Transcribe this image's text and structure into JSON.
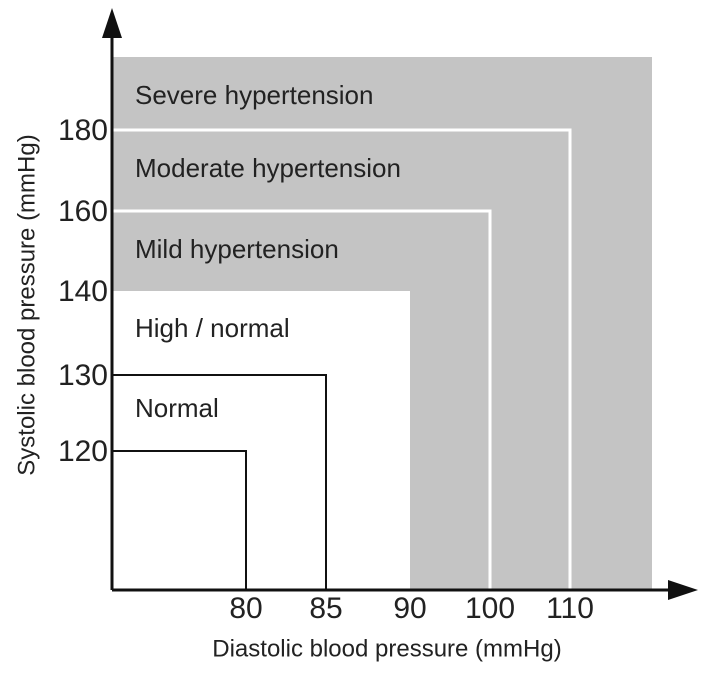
{
  "zones": [
    {
      "label": "Severe hypertension"
    },
    {
      "label": "Moderate hypertension"
    },
    {
      "label": "Mild hypertension"
    },
    {
      "label": "High / normal"
    },
    {
      "label": "Normal"
    }
  ],
  "y_axis": {
    "label": "Systolic blood pressure (mmHg)",
    "ticks": [
      180,
      160,
      140,
      130,
      120
    ]
  },
  "x_axis": {
    "label": "Diastolic blood pressure (mmHg)",
    "ticks": [
      80,
      85,
      90,
      100,
      110
    ]
  }
}
